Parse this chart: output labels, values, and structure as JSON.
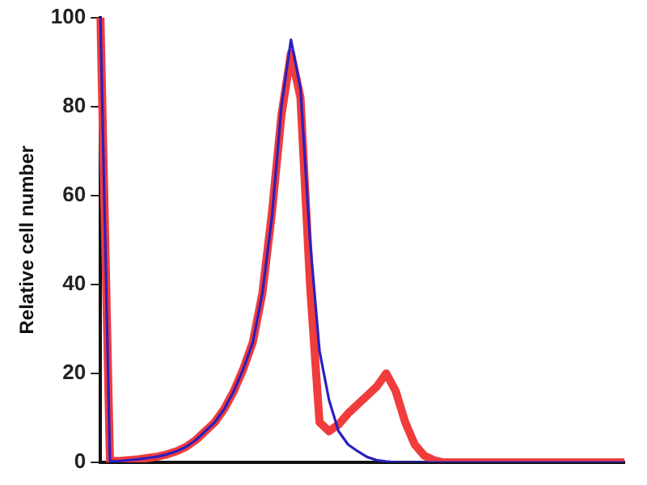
{
  "chart_data": {
    "type": "line",
    "ylabel": "Relative cell number",
    "categories": [
      null,
      null,
      null,
      null,
      null,
      null,
      null,
      null,
      null,
      null,
      null,
      null,
      null,
      null,
      null,
      null,
      null,
      null,
      null,
      null,
      null,
      null,
      null,
      null,
      null,
      null,
      null,
      null,
      null,
      null,
      null,
      null,
      null,
      null,
      null,
      null,
      null,
      null,
      null,
      null,
      null,
      null,
      null,
      null,
      null,
      null,
      null,
      null,
      null,
      null,
      null,
      null,
      null,
      null,
      null,
      null
    ],
    "series": [
      {
        "color": "#f03c3c",
        "values": [
          100,
          0.3,
          0.3,
          0.5,
          0.7,
          1,
          1.3,
          1.8,
          2.5,
          3.5,
          5,
          7,
          9,
          12,
          16,
          21,
          27,
          38,
          56,
          78,
          92,
          82,
          40,
          9,
          7,
          8.5,
          11,
          13,
          15,
          17,
          20,
          16,
          9,
          4,
          1.5,
          0.5,
          0,
          0,
          0,
          0,
          0,
          0,
          0,
          0,
          0,
          0,
          0,
          0,
          0,
          0,
          0,
          0,
          0,
          0,
          0,
          0
        ]
      },
      {
        "color": "#2a1fc0",
        "values": [
          100,
          0.2,
          0.3,
          0.5,
          0.7,
          1,
          1.3,
          1.8,
          2.5,
          3.5,
          5,
          7,
          9,
          12,
          16,
          21,
          27,
          38,
          55,
          80,
          95,
          84,
          50,
          25,
          14,
          7,
          4,
          2.5,
          1.2,
          0.5,
          0.2,
          0,
          0,
          0,
          0,
          0,
          0,
          0,
          0,
          0,
          0,
          0,
          0,
          0,
          0,
          0,
          0,
          0,
          0,
          0,
          0,
          0,
          0,
          0,
          0,
          0
        ]
      }
    ],
    "ylim": [
      0,
      100
    ],
    "yticks": [
      0,
      20,
      40,
      60,
      80,
      100
    ],
    "tick_labels": "y",
    "grid": false,
    "legend": false,
    "marker": "none",
    "line_style": "solid"
  }
}
